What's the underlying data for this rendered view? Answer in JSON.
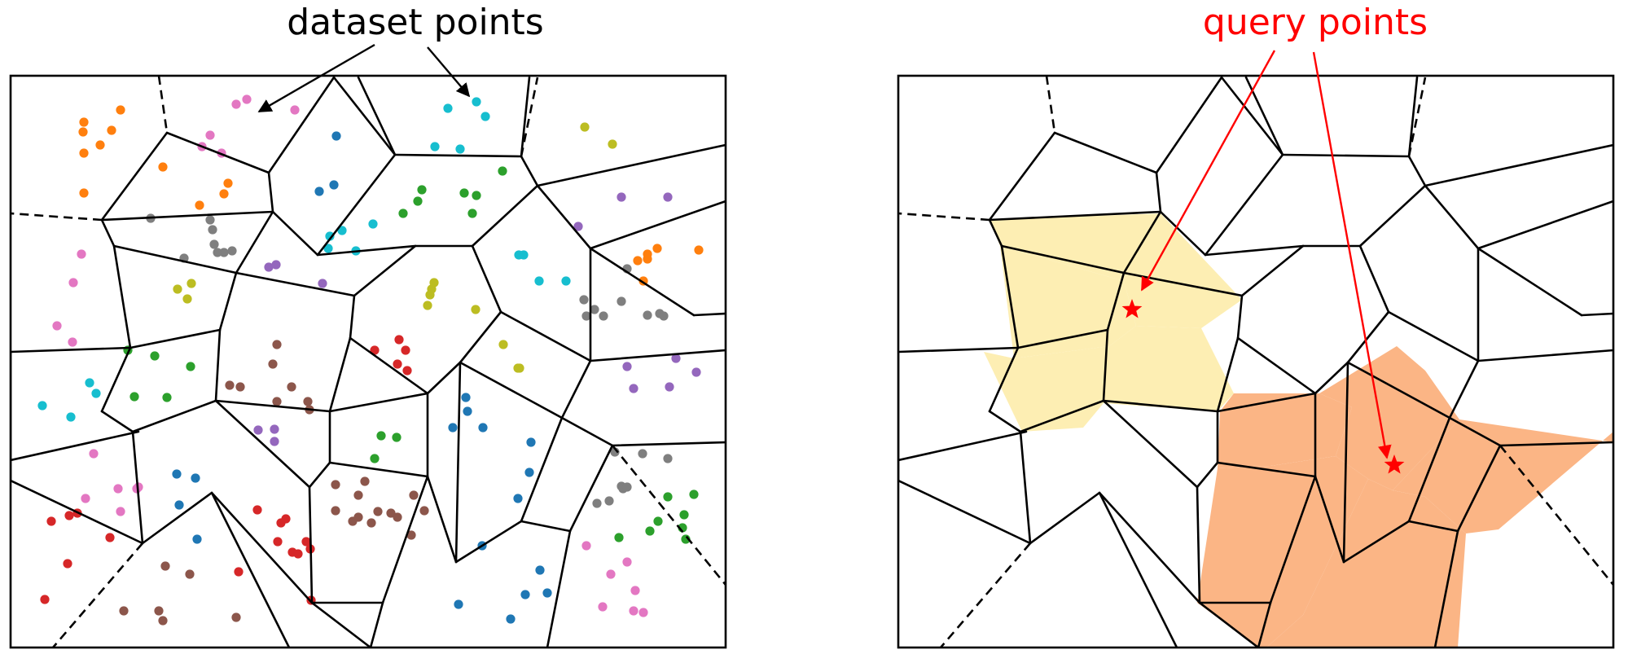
{
  "left_panel": {
    "annotation": "dataset points",
    "annotation_color": "#000000"
  },
  "right_panel": {
    "annotation": "query points",
    "annotation_color": "#ff0000",
    "highlight_colors": {
      "probed_near": "#fdeeb3",
      "probed_far": "#fbb585"
    }
  },
  "palette": {
    "blue": "#1f77b4",
    "orange": "#ff7f0e",
    "green": "#2ca02c",
    "red": "#d62728",
    "purple": "#9467bd",
    "brown": "#8c564b",
    "pink": "#e377c2",
    "gray": "#7f7f7f",
    "olive": "#bcbd22",
    "cyan": "#17becf"
  },
  "marker": {
    "query_color": "#ff0000",
    "query_symbol": "star"
  }
}
